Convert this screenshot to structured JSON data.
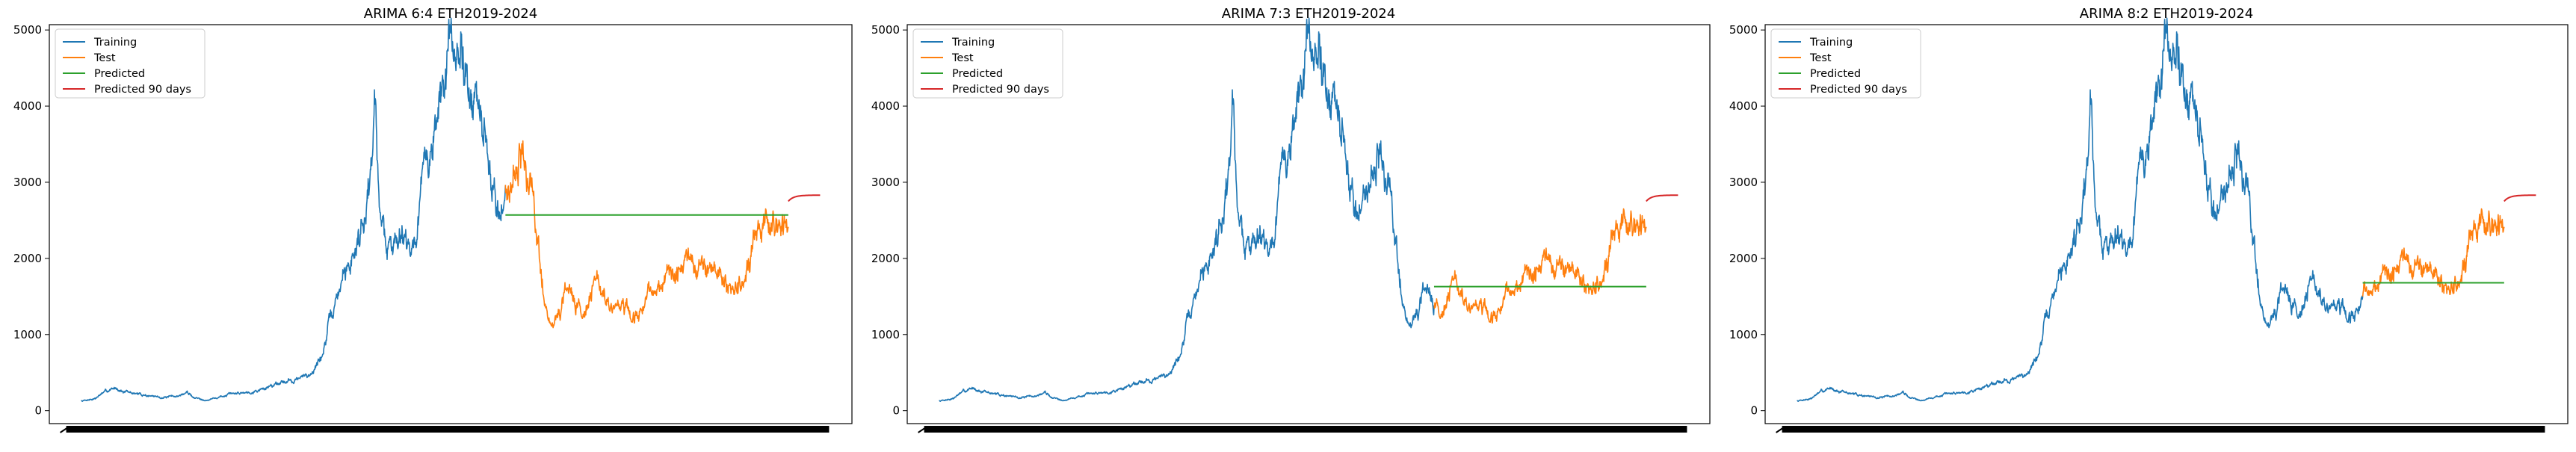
{
  "chart_data": [
    {
      "type": "line",
      "title": "ARIMA 6:4 ETH2019-2024",
      "split": "6:4",
      "xlabel": "",
      "ylabel": "",
      "ylim": [
        -170,
        5070
      ],
      "yticks": [
        0,
        1000,
        2000,
        3000,
        4000,
        5000
      ],
      "x_tick_labels_legible": false,
      "legend": {
        "position": "upper-left",
        "entries": [
          "Training",
          "Test",
          "Predicted",
          "Predicted 90 days"
        ]
      },
      "grid": false,
      "series": [
        {
          "name": "Training",
          "color": "#1f77b4",
          "start": 0,
          "end": 0.6
        },
        {
          "name": "Test",
          "color": "#ff7f0e",
          "start": 0.6,
          "end": 1.0
        },
        {
          "name": "Predicted",
          "color": "#2ca02c",
          "start": 0.6,
          "end": 1.0,
          "value": 2570
        },
        {
          "name": "Predicted 90 days",
          "color": "#d62728",
          "start": 1.0,
          "end": 1.045,
          "value_start": 2750,
          "value_end": 2830
        }
      ]
    },
    {
      "type": "line",
      "title": "ARIMA 7:3 ETH2019-2024",
      "split": "7:3",
      "xlabel": "",
      "ylabel": "",
      "ylim": [
        -170,
        5070
      ],
      "yticks": [
        0,
        1000,
        2000,
        3000,
        4000,
        5000
      ],
      "x_tick_labels_legible": false,
      "legend": {
        "position": "upper-left",
        "entries": [
          "Training",
          "Test",
          "Predicted",
          "Predicted 90 days"
        ]
      },
      "grid": false,
      "series": [
        {
          "name": "Training",
          "color": "#1f77b4",
          "start": 0,
          "end": 0.7
        },
        {
          "name": "Test",
          "color": "#ff7f0e",
          "start": 0.7,
          "end": 1.0
        },
        {
          "name": "Predicted",
          "color": "#2ca02c",
          "start": 0.7,
          "end": 1.0,
          "value": 1630
        },
        {
          "name": "Predicted 90 days",
          "color": "#d62728",
          "start": 1.0,
          "end": 1.045,
          "value_start": 2750,
          "value_end": 2830
        }
      ]
    },
    {
      "type": "line",
      "title": "ARIMA 8:2 ETH2019-2024",
      "split": "8:2",
      "xlabel": "",
      "ylabel": "",
      "ylim": [
        -170,
        5070
      ],
      "yticks": [
        0,
        1000,
        2000,
        3000,
        4000,
        5000
      ],
      "x_tick_labels_legible": false,
      "legend": {
        "position": "upper-left",
        "entries": [
          "Training",
          "Test",
          "Predicted",
          "Predicted 90 days"
        ]
      },
      "grid": false,
      "series": [
        {
          "name": "Training",
          "color": "#1f77b4",
          "start": 0,
          "end": 0.8
        },
        {
          "name": "Test",
          "color": "#ff7f0e",
          "start": 0.8,
          "end": 1.0
        },
        {
          "name": "Predicted",
          "color": "#2ca02c",
          "start": 0.8,
          "end": 1.0,
          "value": 1680
        },
        {
          "name": "Predicted 90 days",
          "color": "#d62728",
          "start": 1.0,
          "end": 1.045,
          "value_start": 2750,
          "value_end": 2830
        }
      ]
    }
  ],
  "price_profile": [
    [
      0.0,
      130
    ],
    [
      0.02,
      160
    ],
    [
      0.03,
      230
    ],
    [
      0.04,
      270
    ],
    [
      0.05,
      300
    ],
    [
      0.06,
      250
    ],
    [
      0.08,
      220
    ],
    [
      0.1,
      190
    ],
    [
      0.12,
      170
    ],
    [
      0.14,
      200
    ],
    [
      0.15,
      240
    ],
    [
      0.16,
      170
    ],
    [
      0.18,
      140
    ],
    [
      0.2,
      190
    ],
    [
      0.22,
      230
    ],
    [
      0.24,
      250
    ],
    [
      0.26,
      290
    ],
    [
      0.28,
      380
    ],
    [
      0.3,
      400
    ],
    [
      0.31,
      430
    ],
    [
      0.32,
      450
    ],
    [
      0.33,
      560
    ],
    [
      0.34,
      700
    ],
    [
      0.35,
      1100
    ],
    [
      0.36,
      1400
    ],
    [
      0.37,
      1750
    ],
    [
      0.38,
      1900
    ],
    [
      0.39,
      2200
    ],
    [
      0.4,
      2600
    ],
    [
      0.41,
      3200
    ],
    [
      0.415,
      4150
    ],
    [
      0.42,
      3000
    ],
    [
      0.43,
      2200
    ],
    [
      0.44,
      2100
    ],
    [
      0.45,
      2450
    ],
    [
      0.46,
      2300
    ],
    [
      0.47,
      2100
    ],
    [
      0.48,
      2800
    ],
    [
      0.49,
      3300
    ],
    [
      0.5,
      3600
    ],
    [
      0.51,
      4200
    ],
    [
      0.52,
      4600
    ],
    [
      0.525,
      4800
    ],
    [
      0.53,
      4500
    ],
    [
      0.54,
      4700
    ],
    [
      0.55,
      4300
    ],
    [
      0.56,
      3900
    ],
    [
      0.57,
      3600
    ],
    [
      0.58,
      3000
    ],
    [
      0.59,
      2600
    ],
    [
      0.6,
      2800
    ],
    [
      0.61,
      3100
    ],
    [
      0.62,
      3450
    ],
    [
      0.63,
      3100
    ],
    [
      0.64,
      2700
    ],
    [
      0.645,
      2200
    ],
    [
      0.65,
      1900
    ],
    [
      0.655,
      1450
    ],
    [
      0.66,
      1250
    ],
    [
      0.665,
      1050
    ],
    [
      0.67,
      1200
    ],
    [
      0.68,
      1350
    ],
    [
      0.69,
      1600
    ],
    [
      0.7,
      1450
    ],
    [
      0.71,
      1300
    ],
    [
      0.72,
      1550
    ],
    [
      0.73,
      1700
    ],
    [
      0.74,
      1500
    ],
    [
      0.75,
      1300
    ],
    [
      0.76,
      1380
    ],
    [
      0.77,
      1300
    ],
    [
      0.78,
      1200
    ],
    [
      0.79,
      1250
    ],
    [
      0.8,
      1450
    ],
    [
      0.81,
      1600
    ],
    [
      0.82,
      1680
    ],
    [
      0.83,
      1800
    ],
    [
      0.84,
      1750
    ],
    [
      0.85,
      1850
    ],
    [
      0.86,
      2000
    ],
    [
      0.87,
      1900
    ],
    [
      0.88,
      1850
    ],
    [
      0.89,
      1950
    ],
    [
      0.9,
      1800
    ],
    [
      0.91,
      1700
    ],
    [
      0.92,
      1600
    ],
    [
      0.93,
      1620
    ],
    [
      0.94,
      1750
    ],
    [
      0.95,
      2150
    ],
    [
      0.96,
      2300
    ],
    [
      0.97,
      2400
    ],
    [
      0.98,
      2550
    ],
    [
      0.99,
      2400
    ],
    [
      1.0,
      2450
    ]
  ]
}
